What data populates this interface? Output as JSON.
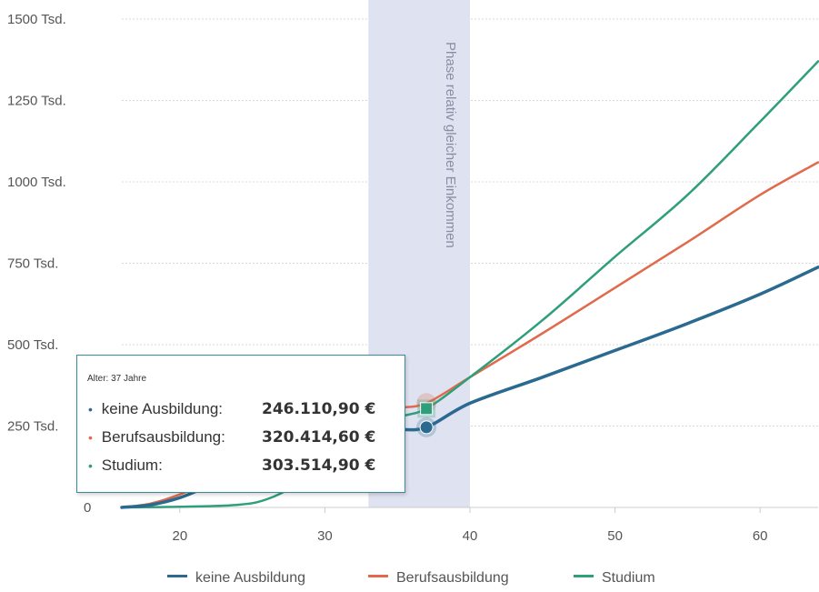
{
  "chart_data": {
    "type": "line",
    "title": "",
    "xlabel": "",
    "ylabel": "",
    "xlim": [
      16,
      64
    ],
    "ylim": [
      0,
      1500000
    ],
    "x_ticks": [
      20,
      30,
      40,
      50,
      60
    ],
    "x_tick_labels": [
      "20",
      "30",
      "40",
      "50",
      "60"
    ],
    "y_ticks": [
      0,
      250000,
      500000,
      750000,
      1000000,
      1250000,
      1500000
    ],
    "y_tick_labels": [
      "0",
      "250 Tsd.",
      "500 Tsd.",
      "750 Tsd.",
      "1000 Tsd.",
      "1250 Tsd.",
      "1500 Tsd."
    ],
    "grid": true,
    "legend_position": "bottom",
    "band": {
      "from": 33,
      "to": 40,
      "label": "Phase relativ gleicher Einkommen"
    },
    "series": [
      {
        "name": "keine Ausbildung",
        "color": "#2b6a90",
        "points": [
          [
            16,
            0
          ],
          [
            18,
            8000
          ],
          [
            20,
            30000
          ],
          [
            22,
            65000
          ],
          [
            25,
            110000
          ],
          [
            28,
            160000
          ],
          [
            30,
            195000
          ],
          [
            33,
            222000
          ],
          [
            35,
            238000
          ],
          [
            37,
            246110
          ],
          [
            40,
            320000
          ],
          [
            45,
            400000
          ],
          [
            50,
            482000
          ],
          [
            55,
            565000
          ],
          [
            60,
            655000
          ],
          [
            64,
            738000
          ]
        ]
      },
      {
        "name": "Berufsausbildung",
        "color": "#e06a4b",
        "points": [
          [
            16,
            0
          ],
          [
            18,
            12000
          ],
          [
            20,
            40000
          ],
          [
            22,
            80000
          ],
          [
            25,
            140000
          ],
          [
            28,
            200000
          ],
          [
            30,
            240000
          ],
          [
            33,
            285000
          ],
          [
            35,
            305000
          ],
          [
            37,
            320415
          ],
          [
            40,
            400000
          ],
          [
            45,
            535000
          ],
          [
            50,
            675000
          ],
          [
            55,
            815000
          ],
          [
            60,
            960000
          ],
          [
            64,
            1060000
          ]
        ]
      },
      {
        "name": "Studium",
        "color": "#2e9e7b",
        "points": [
          [
            16,
            0
          ],
          [
            20,
            2000
          ],
          [
            24,
            8000
          ],
          [
            26,
            25000
          ],
          [
            28,
            70000
          ],
          [
            30,
            145000
          ],
          [
            32,
            210000
          ],
          [
            35,
            275000
          ],
          [
            37,
            303515
          ],
          [
            40,
            400000
          ],
          [
            45,
            575000
          ],
          [
            50,
            770000
          ],
          [
            55,
            960000
          ],
          [
            60,
            1185000
          ],
          [
            64,
            1370000
          ]
        ]
      }
    ],
    "tooltip": {
      "header": "Alter: 37 Jahre",
      "x": 37,
      "rows": [
        {
          "label": "keine Ausbildung:",
          "value": "246.110,90 €",
          "color": "#2b6a90"
        },
        {
          "label": "Berufsausbildung:",
          "value": "320.414,60 €",
          "color": "#e06a4b"
        },
        {
          "label": "Studium:",
          "value": "303.514,90 €",
          "color": "#2e9e7b"
        }
      ]
    }
  }
}
